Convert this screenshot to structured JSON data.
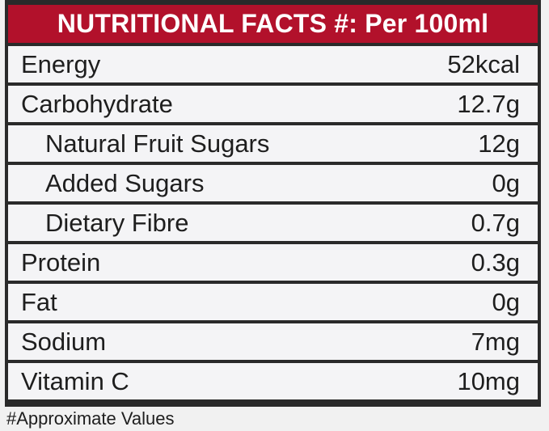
{
  "header": {
    "title": "NUTRITIONAL FACTS #: Per 100ml"
  },
  "nutrients": [
    {
      "name": "Energy",
      "value": "52kcal",
      "indent": false
    },
    {
      "name": "Carbohydrate",
      "value": "12.7g",
      "indent": false
    },
    {
      "name": "Natural Fruit Sugars",
      "value": "12g",
      "indent": true
    },
    {
      "name": "Added Sugars",
      "value": "0g",
      "indent": true
    },
    {
      "name": "Dietary Fibre",
      "value": "0.7g",
      "indent": true
    },
    {
      "name": "Protein",
      "value": "0.3g",
      "indent": false
    },
    {
      "name": "Fat",
      "value": "0g",
      "indent": false
    },
    {
      "name": "Sodium",
      "value": "7mg",
      "indent": false
    },
    {
      "name": "Vitamin C",
      "value": "10mg",
      "indent": false
    }
  ],
  "footnote": "#Approximate Values",
  "colors": {
    "header_bg": "#b2112b",
    "header_text": "#ffffff",
    "border": "#2a2a2a",
    "row_bg": "#f4f4f6"
  }
}
